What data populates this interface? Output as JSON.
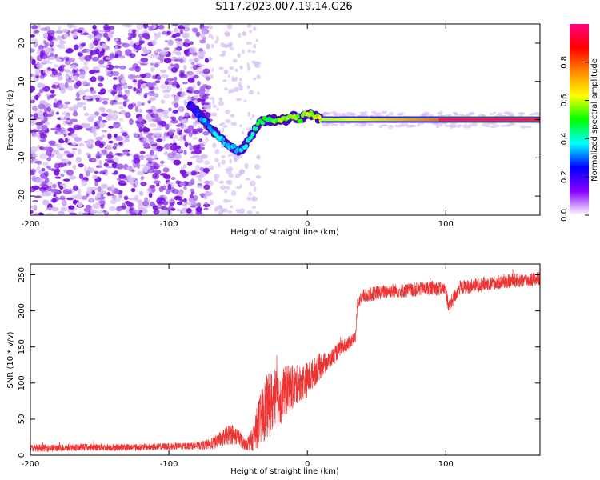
{
  "title": "S117.2023.007.19.14.G26",
  "colors": {
    "snr_line": "#ee3333",
    "track_core": "#e8205a",
    "track_edge": "#1a8a3a",
    "noise_dark": "#7a14e0",
    "noise_light": "#d6bdf5",
    "axis": "#000000"
  },
  "chart_data": [
    {
      "id": "spectrogram",
      "type": "heatmap",
      "title": "",
      "xlabel": "Height of straight line (km)",
      "ylabel": "Frequency (Hz)",
      "xlim": [
        -200,
        168
      ],
      "ylim": [
        -25,
        25
      ],
      "xticks": [
        "-200",
        "-100",
        "0",
        "100"
      ],
      "xtick_values": [
        -200,
        -100,
        0,
        100
      ],
      "yticks": [
        "20",
        "10",
        "0",
        "-10",
        "-20"
      ],
      "ytick_values": [
        20,
        10,
        0,
        -10,
        -20
      ],
      "colorbar": {
        "label": "Normalized spectral amplitude",
        "range": [
          0.0,
          1.0
        ],
        "ticks": [
          "0.0",
          "0.2",
          "0.4",
          "0.6",
          "0.8"
        ],
        "tick_values": [
          0.0,
          0.2,
          0.4,
          0.6,
          0.8
        ],
        "colormap": [
          "#ffffff",
          "#8800ff",
          "#0000ff",
          "#00ffff",
          "#00ff00",
          "#ffff00",
          "#ff8800",
          "#ff0000",
          "#ff0080"
        ]
      },
      "noise_region": {
        "x": [
          -200,
          -70
        ],
        "amplitude": 0.1
      },
      "scattered_noise_region": {
        "x": [
          -70,
          -35
        ],
        "amplitude": 0.05
      },
      "ridge": {
        "x": [
          -85,
          -80,
          -75,
          -70,
          -65,
          -60,
          -55,
          -50,
          -45,
          -40,
          -35,
          -30,
          -25,
          -20,
          -15,
          -10,
          -5,
          0,
          5,
          10,
          20,
          40,
          60,
          80,
          100,
          120,
          140,
          168
        ],
        "freq": [
          4,
          2,
          0,
          -2,
          -4,
          -6,
          -7,
          -8,
          -7,
          -4,
          -1,
          0,
          0,
          0,
          0,
          1,
          0,
          2,
          1,
          0,
          0,
          0,
          0,
          0,
          0,
          0,
          0,
          0
        ],
        "amplitude": [
          0.2,
          0.25,
          0.3,
          0.3,
          0.35,
          0.35,
          0.35,
          0.35,
          0.35,
          0.4,
          0.45,
          0.5,
          0.5,
          0.55,
          0.55,
          0.55,
          0.55,
          0.6,
          0.6,
          0.6,
          0.6,
          0.65,
          0.7,
          0.75,
          0.8,
          0.85,
          0.9,
          0.9
        ]
      }
    },
    {
      "id": "snr",
      "type": "line",
      "title": "",
      "xlabel": "Height of straight line (km)",
      "ylabel": "SNR (10 * v/v)",
      "xlim": [
        -200,
        168
      ],
      "ylim": [
        0,
        265
      ],
      "xticks": [
        "-200",
        "-100",
        "0",
        "100"
      ],
      "xtick_values": [
        -200,
        -100,
        0,
        100
      ],
      "yticks": [
        "0",
        "50",
        "100",
        "150",
        "200",
        "250"
      ],
      "ytick_values": [
        0,
        50,
        100,
        150,
        200,
        250
      ],
      "series": [
        {
          "x": [
            -200,
            -180,
            -160,
            -140,
            -120,
            -100,
            -80,
            -70,
            -60,
            -55,
            -50,
            -45,
            -40,
            -35,
            -30,
            -25,
            -20,
            -15,
            -10,
            -5,
            0,
            5,
            10,
            15,
            20,
            25,
            30,
            35,
            36,
            40,
            50,
            60,
            70,
            80,
            90,
            100,
            102,
            110,
            120,
            130,
            140,
            150,
            160,
            168
          ],
          "values": [
            10,
            10,
            11,
            11,
            11,
            12,
            13,
            15,
            25,
            30,
            25,
            15,
            20,
            45,
            65,
            75,
            80,
            90,
            95,
            100,
            105,
            115,
            125,
            130,
            140,
            150,
            155,
            165,
            210,
            220,
            225,
            228,
            228,
            230,
            232,
            230,
            205,
            232,
            235,
            238,
            240,
            242,
            243,
            245
          ],
          "noise": [
            5,
            5,
            5,
            5,
            5,
            5,
            5,
            8,
            12,
            15,
            12,
            8,
            15,
            35,
            45,
            45,
            40,
            35,
            30,
            25,
            25,
            20,
            18,
            12,
            12,
            10,
            10,
            8,
            8,
            10,
            10,
            10,
            10,
            10,
            10,
            10,
            10,
            10,
            10,
            10,
            10,
            10,
            10,
            10
          ]
        }
      ]
    }
  ]
}
